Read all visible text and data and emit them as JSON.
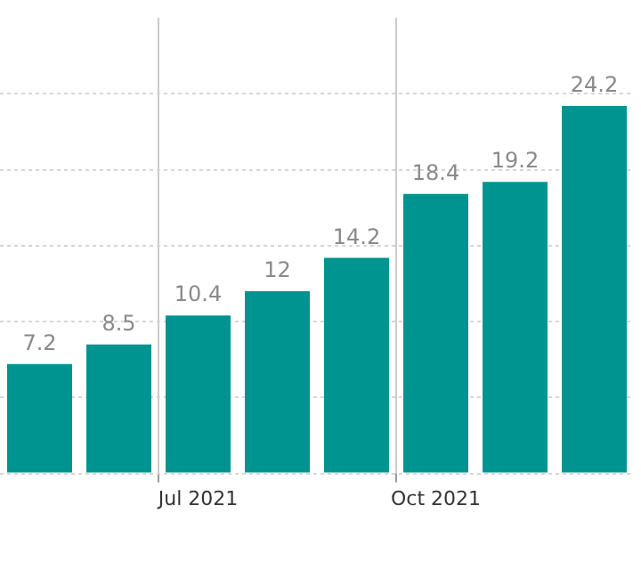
{
  "chart_data": {
    "type": "bar",
    "categories": [
      null,
      null,
      "Jul 2021",
      null,
      null,
      "Oct 2021",
      null,
      null
    ],
    "values": [
      7.2,
      8.5,
      10.4,
      12,
      14.2,
      18.4,
      19.2,
      24.2
    ],
    "color": "#009490",
    "data_labels": true,
    "ylim": [
      0,
      30
    ],
    "yticks": [
      {
        "value": 0,
        "label": null
      },
      {
        "value": 5,
        "label": null
      },
      {
        "value": 10,
        "label": null
      },
      {
        "value": 15,
        "label": null
      },
      {
        "value": 20,
        "label": null
      },
      {
        "value": 25,
        "label": null
      }
    ],
    "grid": true,
    "tick_labels": "x"
  }
}
